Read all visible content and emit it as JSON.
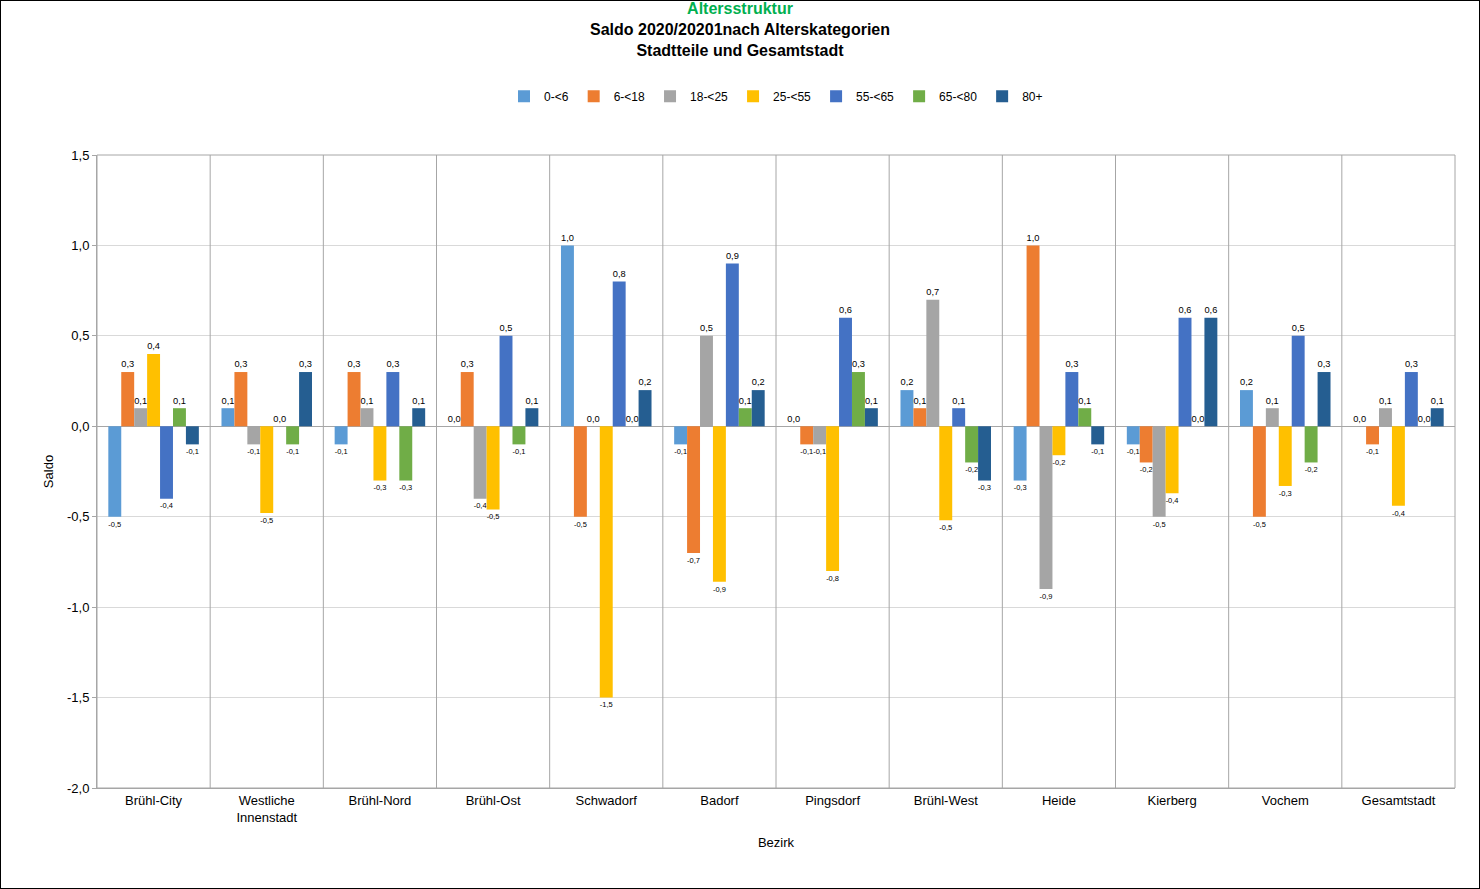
{
  "chart_data": {
    "type": "bar",
    "title": "Altersstruktur",
    "subtitle": [
      "Saldo 2020/20201nach Alterskategorien",
      "Stadtteile und Gesamtstadt"
    ],
    "x_label": "Bezirk",
    "y_label": "Saldo",
    "categories": [
      "Brühl-City",
      "Westliche Innenstadt",
      "Brühl-Nord",
      "Brühl-Ost",
      "Schwadorf",
      "Badorf",
      "Pingsdorf",
      "Brühl-West",
      "Heide",
      "Kierberg",
      "Vochem",
      "Gesamtstadt"
    ],
    "series": [
      {
        "name": "0-<6",
        "color": "#5b9bd5",
        "values": [
          -0.5,
          0.1,
          -0.1,
          0.0,
          1.0,
          -0.1,
          0.0,
          0.2,
          -0.3,
          -0.1,
          0.2,
          0.0
        ],
        "value_labels": [
          "-0,5",
          "0,1",
          "-0,1",
          "0,0",
          "1,0",
          "-0,1",
          "0,0",
          "0,2",
          "-0,3",
          "-0,1",
          "0,2",
          "0,0"
        ]
      },
      {
        "name": "6-<18",
        "color": "#ed7d31",
        "values": [
          0.3,
          0.3,
          0.3,
          0.3,
          -0.5,
          -0.7,
          -0.1,
          0.1,
          1.0,
          -0.2,
          -0.5,
          -0.1
        ],
        "value_labels": [
          "0,3",
          "0,3",
          "0,3",
          "0,3",
          "-0,5",
          "-0,7",
          "-0,1",
          "0,1",
          "1,0",
          "-0,2",
          "-0,5",
          "-0,1"
        ]
      },
      {
        "name": "18-<25",
        "color": "#a5a5a5",
        "values": [
          0.1,
          -0.1,
          0.1,
          -0.4,
          0.0,
          0.5,
          -0.1,
          0.7,
          -0.9,
          -0.5,
          0.1,
          0.1
        ],
        "value_labels": [
          "0,1",
          "-0,1",
          "0,1",
          "-0,4",
          "0,0",
          "0,5",
          "-0,1",
          "0,7",
          "-0,9",
          "-0,5",
          "0,1",
          "0,1"
        ]
      },
      {
        "name": "25-<55",
        "color": "#ffc000",
        "values": [
          0.4,
          -0.48,
          -0.3,
          -0.46,
          -1.5,
          -0.86,
          -0.8,
          -0.52,
          -0.16,
          -0.37,
          -0.33,
          -0.44
        ],
        "value_labels": [
          "0,4",
          "-0,5",
          "-0,3",
          "-0,5",
          "-1,5",
          "-0,9",
          "-0,8",
          "-0,5",
          "-0,2",
          "-0,4",
          "-0,3",
          "-0,4"
        ]
      },
      {
        "name": "55-<65",
        "color": "#4472c4",
        "values": [
          -0.4,
          0.0,
          0.3,
          0.5,
          0.8,
          0.9,
          0.6,
          0.1,
          0.3,
          0.6,
          0.5,
          0.3
        ],
        "value_labels": [
          "-0,4",
          "0,0",
          "0,3",
          "0,5",
          "0,8",
          "0,9",
          "0,6",
          "0,1",
          "0,3",
          "0,6",
          "0,5",
          "0,3"
        ]
      },
      {
        "name": "65-<80",
        "color": "#70ad47",
        "values": [
          0.1,
          -0.1,
          -0.3,
          -0.1,
          0.0,
          0.1,
          0.3,
          -0.2,
          0.1,
          0.0,
          -0.2,
          0.0
        ],
        "value_labels": [
          "0,1",
          "-0,1",
          "-0,3",
          "-0,1",
          "0,0",
          "0,1",
          "0,3",
          "-0,2",
          "0,1",
          "0,0",
          "-0,2",
          "0,0"
        ]
      },
      {
        "name": "80+",
        "color": "#255e91",
        "values": [
          -0.1,
          0.3,
          0.1,
          0.1,
          0.2,
          0.2,
          0.1,
          -0.3,
          -0.1,
          0.6,
          0.3,
          0.1
        ],
        "value_labels": [
          "-0,1",
          "0,3",
          "0,1",
          "0,1",
          "0,2",
          "0,2",
          "0,1",
          "-0,3",
          "-0,1",
          "0,6",
          "0,3",
          "0,1"
        ]
      }
    ],
    "ylim": [
      -2.0,
      1.5
    ],
    "yticks": [
      {
        "value": -2.0,
        "label": "-2,0"
      },
      {
        "value": -1.5,
        "label": "-1,5"
      },
      {
        "value": -1.0,
        "label": "-1,0"
      },
      {
        "value": -0.5,
        "label": "-0,5"
      },
      {
        "value": 0,
        "label": "0,0"
      },
      {
        "value": 0.5,
        "label": "0,5"
      },
      {
        "value": 1.0,
        "label": "1,0"
      },
      {
        "value": 1.5,
        "label": "1,5"
      }
    ],
    "grid": true,
    "legend": "top",
    "data_labels": true
  }
}
